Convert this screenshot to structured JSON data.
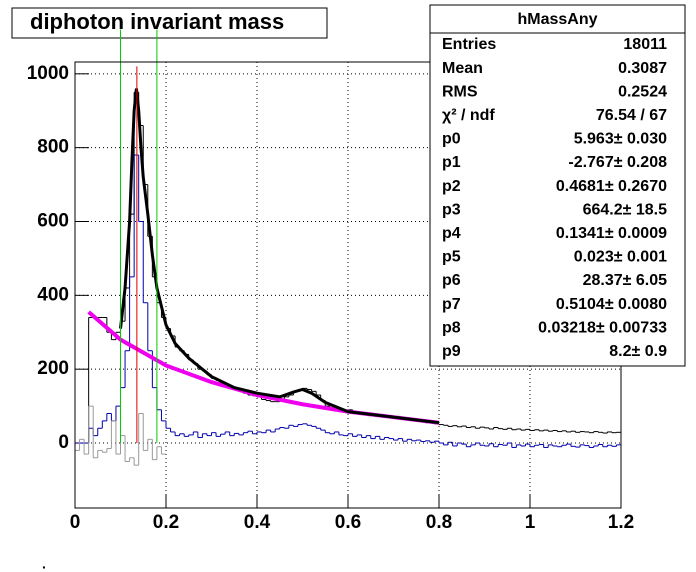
{
  "chart_data": {
    "type": "histogram",
    "title": "diphoton invariant mass",
    "bins": [
      0,
      0.01,
      0.02,
      0.03,
      0.04,
      0.05,
      0.06,
      0.07,
      0.08,
      0.09,
      0.1,
      0.11,
      0.12,
      0.13,
      0.14,
      0.15,
      0.16,
      0.17,
      0.18,
      0.19,
      0.2,
      0.21,
      0.22,
      0.23,
      0.24,
      0.25,
      0.26,
      0.27,
      0.28,
      0.29,
      0.3,
      0.31,
      0.32,
      0.33,
      0.34,
      0.35,
      0.36,
      0.37,
      0.38,
      0.39,
      0.4,
      0.41,
      0.42,
      0.43,
      0.44,
      0.45,
      0.46,
      0.47,
      0.48,
      0.49,
      0.5,
      0.51,
      0.52,
      0.53,
      0.54,
      0.55,
      0.56,
      0.57,
      0.58,
      0.59,
      0.6,
      0.61,
      0.62,
      0.63,
      0.64,
      0.65,
      0.66,
      0.67,
      0.68,
      0.69,
      0.7,
      0.71,
      0.72,
      0.73,
      0.74,
      0.75,
      0.76,
      0.77,
      0.78,
      0.79,
      0.8,
      0.81,
      0.82,
      0.83,
      0.84,
      0.85,
      0.86,
      0.87,
      0.88,
      0.89,
      0.9,
      0.91,
      0.92,
      0.93,
      0.94,
      0.95,
      0.96,
      0.97,
      0.98,
      0.99,
      1,
      1.01,
      1.02,
      1.03,
      1.04,
      1.05,
      1.06,
      1.07,
      1.08,
      1.09,
      1.1,
      1.11,
      1.12,
      1.13,
      1.14,
      1.15,
      1.16,
      1.17,
      1.18,
      1.19,
      1.2
    ],
    "series": [
      {
        "color": "#000000",
        "values": [
          0,
          0,
          0,
          340,
          340,
          340,
          340,
          300,
          280,
          300,
          330,
          420,
          620,
          950,
          860,
          700,
          560,
          450,
          380,
          340,
          310,
          290,
          260,
          250,
          240,
          225,
          215,
          200,
          195,
          185,
          175,
          170,
          160,
          155,
          150,
          148,
          140,
          135,
          130,
          128,
          125,
          118,
          115,
          112,
          112,
          118,
          125,
          130,
          140,
          145,
          148,
          145,
          140,
          130,
          115,
          100,
          95,
          90,
          88,
          85,
          90,
          85,
          80,
          82,
          78,
          75,
          78,
          72,
          70,
          70,
          68,
          65,
          65,
          62,
          60,
          60,
          58,
          55,
          55,
          52,
          50,
          48,
          45,
          47,
          44,
          46,
          42,
          44,
          40,
          43,
          41,
          38,
          42,
          39,
          37,
          40,
          36,
          38,
          35,
          37,
          34,
          36,
          33,
          35,
          32,
          34,
          31,
          33,
          30,
          32,
          29,
          31,
          30,
          28,
          31,
          29,
          27,
          30,
          28,
          29
        ]
      },
      {
        "color": "#0000aa",
        "values": [
          0,
          0,
          0,
          40,
          20,
          40,
          60,
          80,
          60,
          100,
          150,
          250,
          450,
          780,
          600,
          380,
          250,
          150,
          90,
          60,
          40,
          30,
          20,
          25,
          18,
          22,
          30,
          15,
          25,
          20,
          28,
          18,
          24,
          30,
          20,
          26,
          22,
          28,
          32,
          25,
          30,
          28,
          35,
          30,
          38,
          42,
          40,
          48,
          45,
          50,
          52,
          48,
          45,
          40,
          35,
          28,
          25,
          30,
          22,
          20,
          25,
          18,
          22,
          15,
          20,
          12,
          18,
          10,
          15,
          12,
          8,
          12,
          5,
          10,
          6,
          8,
          4,
          6,
          2,
          5,
          0,
          -5,
          2,
          -8,
          0,
          -3,
          -10,
          -5,
          0,
          -6,
          -8,
          -2,
          -10,
          -4,
          -6,
          0,
          -12,
          -5,
          -8,
          -3,
          -10,
          -6,
          -4,
          -12,
          -5,
          -8,
          -10,
          -6,
          -3,
          -9,
          -11,
          -5,
          -7,
          -12,
          -8,
          -4,
          -10,
          -6,
          -9,
          -5
        ]
      },
      {
        "color": "#999999",
        "values": [
          -20,
          10,
          -30,
          100,
          -40,
          -20,
          -25,
          -15,
          60,
          -30,
          20,
          -50,
          -40,
          -60,
          80,
          -20,
          10,
          -45,
          -10,
          -30,
          null,
          null,
          null,
          null,
          null,
          null,
          null,
          null,
          null,
          null,
          null,
          null,
          null,
          null,
          null,
          null,
          null,
          null,
          null,
          null,
          null,
          null,
          null,
          null,
          null,
          null,
          null,
          null,
          null,
          null,
          null,
          null,
          null,
          null,
          null,
          null,
          null,
          null,
          null,
          null,
          null,
          null,
          null,
          null,
          null,
          null,
          null,
          null,
          null,
          null,
          null,
          null,
          null,
          null,
          null,
          null,
          null,
          null,
          null,
          null,
          null,
          null,
          null,
          null,
          null,
          null,
          null,
          null,
          null,
          null,
          null,
          null,
          null,
          null,
          null,
          null,
          null,
          null,
          null,
          null,
          null,
          null,
          null,
          null,
          null,
          null,
          null,
          null,
          null,
          null,
          null,
          null,
          null,
          null,
          null,
          null,
          null,
          null,
          null,
          null
        ]
      }
    ],
    "curves": [
      {
        "color": "#ee00ee",
        "width": 4,
        "x": [
          0.03,
          0.1,
          0.2,
          0.3,
          0.4,
          0.5,
          0.6,
          0.7,
          0.8
        ],
        "values": [
          355,
          280,
          210,
          165,
          130,
          105,
          85,
          70,
          55
        ]
      },
      {
        "color": "#000000",
        "width": 3,
        "x": [
          0.1,
          0.11,
          0.12,
          0.125,
          0.13,
          0.135,
          0.14,
          0.145,
          0.15,
          0.16,
          0.17,
          0.18,
          0.2,
          0.22,
          0.25,
          0.3,
          0.35,
          0.4,
          0.45,
          0.48,
          0.5,
          0.52,
          0.55,
          0.6,
          0.7,
          0.8
        ],
        "values": [
          310,
          420,
          600,
          760,
          900,
          960,
          900,
          800,
          720,
          620,
          510,
          420,
          320,
          270,
          230,
          180,
          150,
          135,
          125,
          138,
          145,
          135,
          110,
          85,
          70,
          55
        ]
      }
    ],
    "vlines": [
      {
        "x": 0.1,
        "color": "#00cc00",
        "y": [
          0,
          1120
        ]
      },
      {
        "x": 0.18,
        "color": "#00cc00",
        "y": [
          0,
          1120
        ]
      },
      {
        "x": 0.136,
        "color": "#dd0000",
        "y": [
          0,
          1020
        ]
      }
    ],
    "xlim": [
      0,
      1.2
    ],
    "ylim": [
      -176,
      1032
    ],
    "xticks": [
      0,
      0.2,
      0.4,
      0.6,
      0.8,
      1,
      1.2
    ],
    "yticks": [
      0,
      200,
      400,
      600,
      800,
      1000
    ],
    "grid": true,
    "stats_box": {
      "title": "hMassAny",
      "rows": [
        [
          "Entries",
          "18011"
        ],
        [
          "Mean",
          "0.3087"
        ],
        [
          "RMS",
          "0.2524"
        ],
        [
          "χ² / ndf",
          "76.54 / 67"
        ],
        [
          "p0",
          "5.963± 0.030"
        ],
        [
          "p1",
          "-2.767± 0.208"
        ],
        [
          "p2",
          "0.4681± 0.2670"
        ],
        [
          "p3",
          "664.2± 18.5"
        ],
        [
          "p4",
          "0.1341± 0.0009"
        ],
        [
          "p5",
          "0.023± 0.001"
        ],
        [
          "p6",
          "28.37± 6.05"
        ],
        [
          "p7",
          "0.5104± 0.0080"
        ],
        [
          "p8",
          "0.03218± 0.00733"
        ],
        [
          "p9",
          "8.2± 0.9"
        ]
      ]
    },
    "corner_mark": "."
  }
}
